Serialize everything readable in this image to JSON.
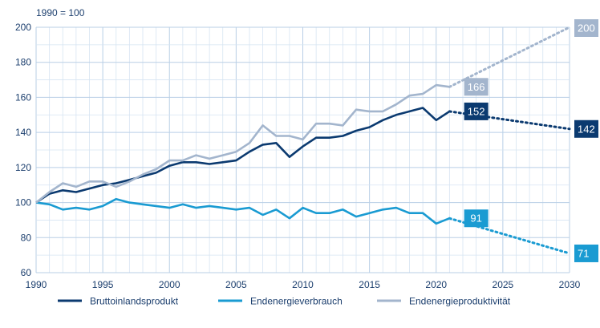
{
  "chart_data": {
    "type": "line",
    "index_note": "1990 = 100",
    "xlim": [
      1990,
      2030
    ],
    "ylim": [
      60,
      200
    ],
    "x_ticks": [
      1990,
      1995,
      2000,
      2005,
      2010,
      2015,
      2020,
      2025,
      2030
    ],
    "y_ticks": [
      60,
      80,
      100,
      120,
      140,
      160,
      180,
      200
    ],
    "grid": "on",
    "legend_position": "bottom",
    "series": [
      {
        "name": "Bruttoinlandsprodukt",
        "color": "#0b3a70",
        "x": [
          1990,
          1991,
          1992,
          1993,
          1994,
          1995,
          1996,
          1997,
          1998,
          1999,
          2000,
          2001,
          2002,
          2003,
          2004,
          2005,
          2006,
          2007,
          2008,
          2009,
          2010,
          2011,
          2012,
          2013,
          2014,
          2015,
          2016,
          2017,
          2018,
          2019,
          2020,
          2021
        ],
        "values": [
          100,
          105,
          107,
          106,
          108,
          110,
          111,
          113,
          115,
          117,
          121,
          123,
          123,
          122,
          123,
          124,
          129,
          133,
          134,
          126,
          132,
          137,
          137,
          138,
          141,
          143,
          147,
          150,
          152,
          154,
          147,
          152
        ],
        "projection": {
          "x": [
            2021,
            2030
          ],
          "values": [
            152,
            142
          ]
        },
        "end_label": "152",
        "projection_label": "142"
      },
      {
        "name": "Endenergieverbrauch",
        "color": "#1a9bd2",
        "x": [
          1990,
          1991,
          1992,
          1993,
          1994,
          1995,
          1996,
          1997,
          1998,
          1999,
          2000,
          2001,
          2002,
          2003,
          2004,
          2005,
          2006,
          2007,
          2008,
          2009,
          2010,
          2011,
          2012,
          2013,
          2014,
          2015,
          2016,
          2017,
          2018,
          2019,
          2020,
          2021
        ],
        "values": [
          100,
          99,
          96,
          97,
          96,
          98,
          102,
          100,
          99,
          98,
          97,
          99,
          97,
          98,
          97,
          96,
          97,
          93,
          96,
          91,
          97,
          94,
          94,
          96,
          92,
          94,
          96,
          97,
          94,
          94,
          88,
          91
        ],
        "projection": {
          "x": [
            2021,
            2030
          ],
          "values": [
            91,
            71
          ]
        },
        "end_label": "91",
        "projection_label": "71"
      },
      {
        "name": "Endenergieproduktivität",
        "color": "#a3b5cd",
        "x": [
          1990,
          1991,
          1992,
          1993,
          1994,
          1995,
          1996,
          1997,
          1998,
          1999,
          2000,
          2001,
          2002,
          2003,
          2004,
          2005,
          2006,
          2007,
          2008,
          2009,
          2010,
          2011,
          2012,
          2013,
          2014,
          2015,
          2016,
          2017,
          2018,
          2019,
          2020,
          2021
        ],
        "values": [
          100,
          106,
          111,
          109,
          112,
          112,
          109,
          112,
          116,
          119,
          124,
          124,
          127,
          125,
          127,
          129,
          134,
          144,
          138,
          138,
          136,
          145,
          145,
          144,
          153,
          152,
          152,
          156,
          161,
          162,
          167,
          166
        ],
        "projection": {
          "x": [
            2021,
            2030
          ],
          "values": [
            166,
            200
          ]
        },
        "end_label": "166",
        "projection_label": "200"
      }
    ]
  }
}
